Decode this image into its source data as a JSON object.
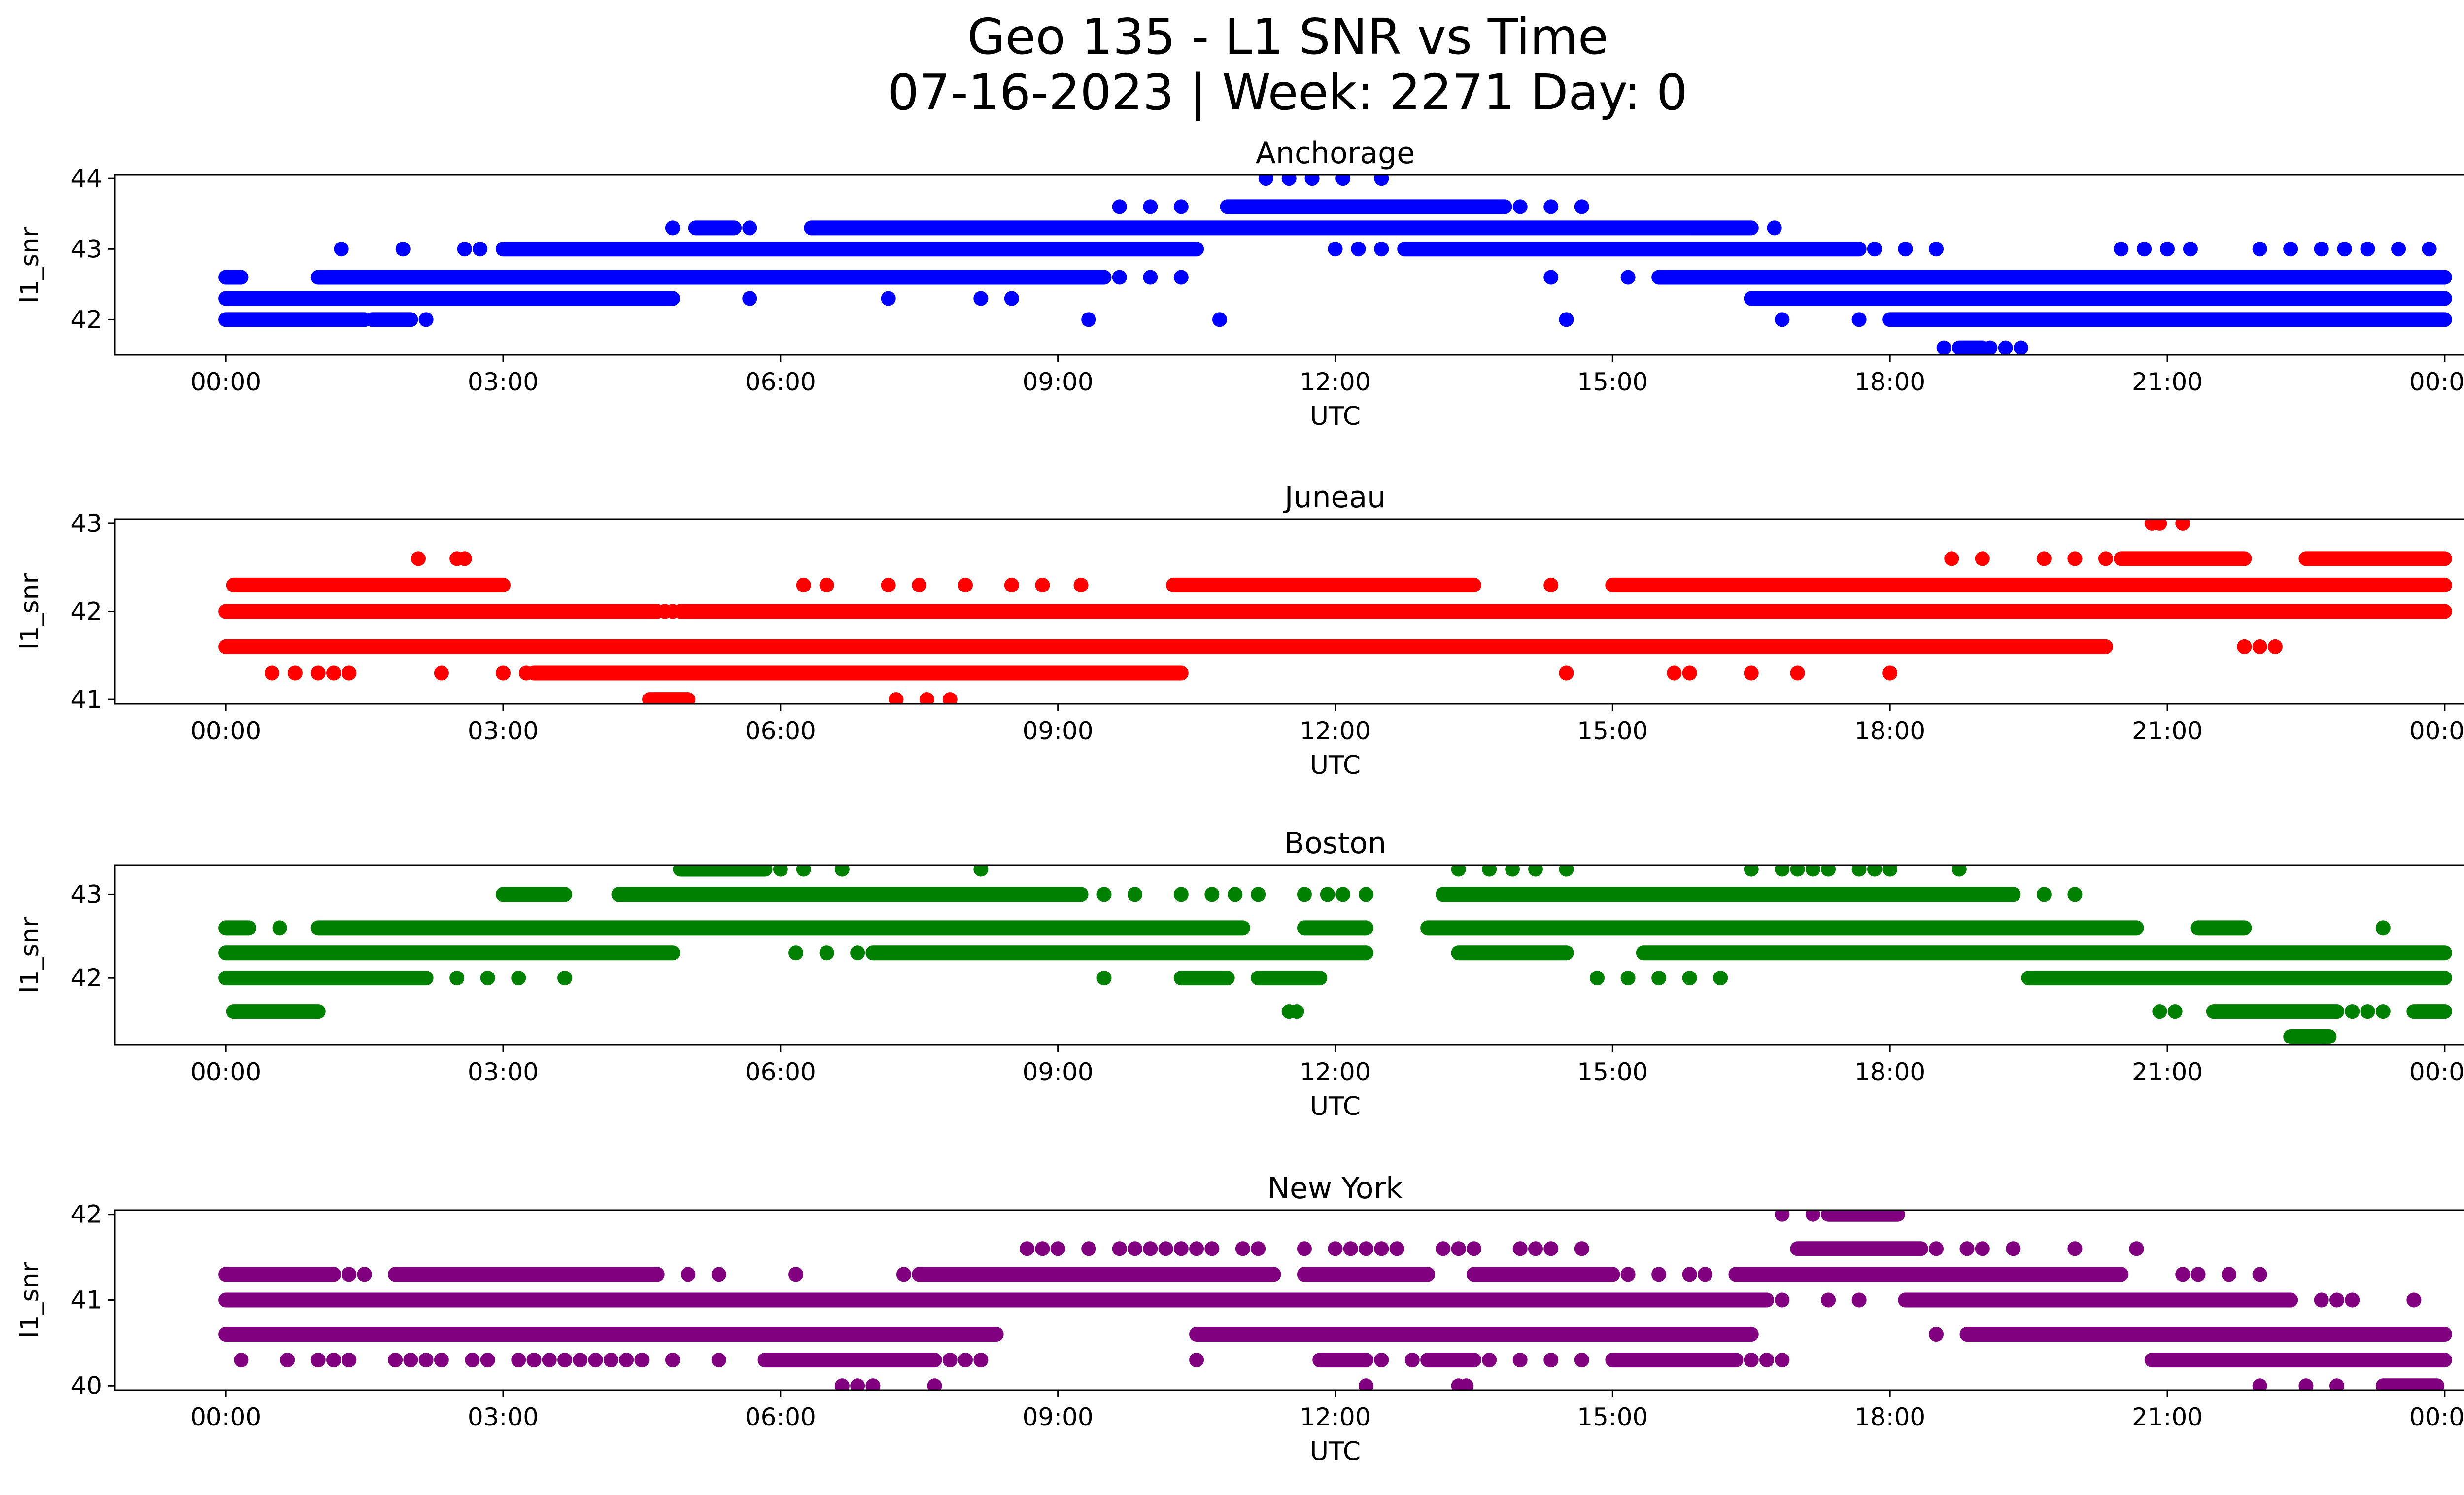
{
  "figure": {
    "title_line1": "Geo 135 - L1 SNR vs Time",
    "title_line2": "07-16-2023 | Week: 2271 Day: 0"
  },
  "colors": {
    "Anchorage": "#0000ff",
    "Juneau": "#ff0000",
    "Boston": "#008000",
    "New York": "#800080"
  },
  "chart_data": [
    {
      "type": "scatter",
      "title": "Anchorage",
      "xlabel": "UTC",
      "ylabel": "l1_snr",
      "xlim": [
        "00:00",
        "24:00"
      ],
      "xticks": [
        "00:00",
        "03:00",
        "06:00",
        "09:00",
        "12:00",
        "15:00",
        "18:00",
        "21:00",
        "00:00"
      ],
      "ylim": [
        41.5,
        44.05
      ],
      "yticks": [
        42,
        43,
        44
      ],
      "grid": false,
      "color": "#0000ff",
      "series": [
        {
          "y": 42.0,
          "bands": [
            [
              "00:00",
              "01:30"
            ],
            [
              "01:35",
              "02:00"
            ],
            [
              "18:00",
              "24:00"
            ]
          ],
          "points": [
            "02:10",
            "09:20",
            "10:45",
            "14:30",
            "16:50",
            "17:40"
          ]
        },
        {
          "y": 42.3,
          "bands": [
            [
              "00:00",
              "04:50"
            ],
            [
              "16:30",
              "24:00"
            ]
          ],
          "points": [
            "05:40",
            "07:10",
            "08:10",
            "08:30"
          ]
        },
        {
          "y": 42.6,
          "bands": [
            [
              "00:00",
              "00:10"
            ],
            [
              "01:00",
              "09:30"
            ],
            [
              "15:30",
              "24:00"
            ]
          ],
          "points": [
            "09:40",
            "10:00",
            "10:20",
            "14:20",
            "15:10"
          ]
        },
        {
          "y": 43.0,
          "bands": [
            [
              "03:00",
              "10:30"
            ],
            [
              "12:45",
              "17:40"
            ]
          ],
          "points": [
            "01:15",
            "01:55",
            "02:35",
            "02:45",
            "12:00",
            "12:15",
            "12:30",
            "17:50",
            "18:10",
            "18:30",
            "20:30",
            "20:45",
            "21:00",
            "21:15",
            "22:00",
            "22:20",
            "22:40",
            "22:55",
            "23:10",
            "23:30",
            "23:50"
          ]
        },
        {
          "y": 43.3,
          "bands": [
            [
              "05:05",
              "05:30"
            ],
            [
              "06:20",
              "16:30"
            ]
          ],
          "points": [
            "04:50",
            "05:40",
            "16:45"
          ]
        },
        {
          "y": 43.6,
          "bands": [
            [
              "10:50",
              "13:50"
            ]
          ],
          "points": [
            "09:40",
            "10:00",
            "10:20",
            "14:00",
            "14:20",
            "14:40"
          ]
        },
        {
          "y": 44.0,
          "bands": [],
          "points": [
            "11:15",
            "11:30",
            "11:45",
            "12:05",
            "12:30"
          ]
        },
        {
          "y": 41.6,
          "bands": [
            [
              "18:45",
              "19:00"
            ]
          ],
          "points": [
            "18:35",
            "19:05",
            "19:15",
            "19:25"
          ]
        }
      ]
    },
    {
      "type": "scatter",
      "title": "Juneau",
      "xlabel": "UTC",
      "ylabel": "l1_snr",
      "xlim": [
        "00:00",
        "24:00"
      ],
      "xticks": [
        "00:00",
        "03:00",
        "06:00",
        "09:00",
        "12:00",
        "15:00",
        "18:00",
        "21:00",
        "00:00"
      ],
      "ylim": [
        40.95,
        43.05
      ],
      "yticks": [
        41,
        42,
        43
      ],
      "grid": false,
      "color": "#ff0000",
      "series": [
        {
          "y": 41.0,
          "bands": [
            [
              "04:35",
              "05:00"
            ]
          ],
          "points": [
            "07:15",
            "07:35",
            "07:50"
          ]
        },
        {
          "y": 41.3,
          "bands": [
            [
              "03:20",
              "10:20"
            ]
          ],
          "points": [
            "00:30",
            "00:45",
            "01:00",
            "01:10",
            "01:20",
            "02:20",
            "03:00",
            "03:15",
            "14:30",
            "15:40",
            "15:50",
            "16:30",
            "17:00",
            "18:00"
          ]
        },
        {
          "y": 41.6,
          "bands": [
            [
              "00:00",
              "20:20"
            ]
          ],
          "points": [
            "21:50",
            "22:00",
            "22:10"
          ]
        },
        {
          "y": 42.0,
          "bands": [
            [
              "00:00",
              "04:40"
            ],
            [
              "04:55",
              "24:00"
            ]
          ],
          "points": [
            "04:45",
            "04:50"
          ]
        },
        {
          "y": 42.3,
          "bands": [
            [
              "00:05",
              "03:00"
            ],
            [
              "10:15",
              "13:30"
            ],
            [
              "15:00",
              "24:00"
            ]
          ],
          "points": [
            "06:15",
            "06:30",
            "07:10",
            "07:30",
            "08:00",
            "08:30",
            "08:50",
            "09:15",
            "14:20"
          ]
        },
        {
          "y": 42.6,
          "bands": [
            [
              "20:30",
              "21:50"
            ],
            [
              "22:30",
              "24:00"
            ]
          ],
          "points": [
            "02:05",
            "02:30",
            "02:35",
            "18:40",
            "19:00",
            "19:40",
            "20:00",
            "20:20"
          ]
        },
        {
          "y": 43.0,
          "bands": [],
          "points": [
            "20:50",
            "20:55",
            "21:10"
          ]
        }
      ]
    },
    {
      "type": "scatter",
      "title": "Boston",
      "xlabel": "UTC",
      "ylabel": "l1_snr",
      "xlim": [
        "00:00",
        "24:00"
      ],
      "xticks": [
        "00:00",
        "03:00",
        "06:00",
        "09:00",
        "12:00",
        "15:00",
        "18:00",
        "21:00",
        "00:00"
      ],
      "ylim": [
        41.2,
        43.35
      ],
      "yticks": [
        42,
        43
      ],
      "grid": false,
      "color": "#008000",
      "series": [
        {
          "y": 41.3,
          "bands": [
            [
              "22:20",
              "22:45"
            ]
          ],
          "points": []
        },
        {
          "y": 41.6,
          "bands": [
            [
              "00:05",
              "01:00"
            ],
            [
              "21:30",
              "22:50"
            ],
            [
              "23:40",
              "24:00"
            ]
          ],
          "points": [
            "11:30",
            "11:35",
            "20:55",
            "21:05",
            "23:00",
            "23:10",
            "23:20"
          ]
        },
        {
          "y": 42.0,
          "bands": [
            [
              "00:00",
              "02:10"
            ],
            [
              "10:20",
              "10:50"
            ],
            [
              "11:10",
              "11:50"
            ],
            [
              "19:30",
              "24:00"
            ]
          ],
          "points": [
            "02:30",
            "02:50",
            "03:10",
            "03:40",
            "09:30",
            "14:50",
            "15:10",
            "15:30",
            "15:50",
            "16:10"
          ]
        },
        {
          "y": 42.3,
          "bands": [
            [
              "00:00",
              "04:50"
            ],
            [
              "07:00",
              "12:20"
            ],
            [
              "13:20",
              "14:30"
            ],
            [
              "15:20",
              "24:00"
            ]
          ],
          "points": [
            "06:10",
            "06:30",
            "06:50"
          ]
        },
        {
          "y": 42.6,
          "bands": [
            [
              "00:00",
              "00:15"
            ],
            [
              "01:00",
              "11:00"
            ],
            [
              "11:40",
              "12:20"
            ],
            [
              "13:00",
              "20:40"
            ],
            [
              "21:20",
              "21:50"
            ]
          ],
          "points": [
            "00:35",
            "23:20"
          ]
        },
        {
          "y": 43.0,
          "bands": [
            [
              "03:00",
              "03:40"
            ],
            [
              "04:15",
              "09:15"
            ],
            [
              "13:10",
              "19:20"
            ]
          ],
          "points": [
            "09:30",
            "09:50",
            "10:20",
            "10:40",
            "10:55",
            "11:10",
            "11:40",
            "11:55",
            "12:05",
            "12:20",
            "19:40",
            "20:00"
          ]
        },
        {
          "y": 43.3,
          "bands": [
            [
              "04:55",
              "05:50"
            ]
          ],
          "points": [
            "06:00",
            "06:15",
            "06:40",
            "08:10",
            "13:20",
            "13:40",
            "13:55",
            "14:10",
            "14:30",
            "16:30",
            "16:50",
            "17:00",
            "17:10",
            "17:20",
            "17:40",
            "17:50",
            "18:00",
            "18:45"
          ]
        }
      ]
    },
    {
      "type": "scatter",
      "title": "New York",
      "xlabel": "UTC",
      "ylabel": "l1_snr",
      "xlim": [
        "00:00",
        "24:00"
      ],
      "xticks": [
        "00:00",
        "03:00",
        "06:00",
        "09:00",
        "12:00",
        "15:00",
        "18:00",
        "21:00",
        "00:00"
      ],
      "ylim": [
        39.95,
        42.05
      ],
      "yticks": [
        40,
        41,
        42
      ],
      "grid": false,
      "color": "#800080",
      "series": [
        {
          "y": 40.0,
          "bands": [
            [
              "23:20",
              "23:55"
            ]
          ],
          "points": [
            "06:40",
            "06:50",
            "07:00",
            "07:40",
            "12:20",
            "13:20",
            "13:25",
            "22:00",
            "22:30",
            "22:50"
          ]
        },
        {
          "y": 40.3,
          "bands": [
            [
              "05:50",
              "07:40"
            ],
            [
              "11:50",
              "12:20"
            ],
            [
              "13:00",
              "13:30"
            ],
            [
              "15:00",
              "16:20"
            ],
            [
              "20:50",
              "24:00"
            ]
          ],
          "points": [
            "00:10",
            "00:40",
            "01:00",
            "01:10",
            "01:20",
            "01:50",
            "02:00",
            "02:10",
            "02:20",
            "02:40",
            "02:50",
            "03:10",
            "03:20",
            "03:30",
            "03:40",
            "03:50",
            "04:00",
            "04:10",
            "04:20",
            "04:30",
            "04:50",
            "05:20",
            "07:50",
            "08:00",
            "08:10",
            "10:30",
            "12:30",
            "12:50",
            "13:40",
            "14:00",
            "14:20",
            "14:40",
            "16:30",
            "16:40",
            "16:50"
          ]
        },
        {
          "y": 40.6,
          "bands": [
            [
              "00:00",
              "08:20"
            ],
            [
              "10:30",
              "16:30"
            ],
            [
              "18:50",
              "24:00"
            ]
          ],
          "points": [
            "18:30"
          ]
        },
        {
          "y": 41.0,
          "bands": [
            [
              "00:00",
              "16:40"
            ],
            [
              "18:10",
              "22:20"
            ]
          ],
          "points": [
            "16:50",
            "17:20",
            "17:40",
            "22:40",
            "22:50",
            "23:00",
            "23:40"
          ]
        },
        {
          "y": 41.3,
          "bands": [
            [
              "00:00",
              "01:10"
            ],
            [
              "01:50",
              "04:40"
            ],
            [
              "07:30",
              "11:20"
            ],
            [
              "11:40",
              "13:00"
            ],
            [
              "13:30",
              "15:00"
            ],
            [
              "16:20",
              "20:30"
            ]
          ],
          "points": [
            "01:20",
            "01:30",
            "05:00",
            "05:20",
            "06:10",
            "07:20",
            "15:10",
            "15:30",
            "15:50",
            "16:00",
            "21:10",
            "21:20",
            "21:40",
            "22:00"
          ]
        },
        {
          "y": 41.6,
          "bands": [
            [
              "17:00",
              "18:20"
            ]
          ],
          "points": [
            "08:40",
            "08:50",
            "09:00",
            "09:20",
            "09:40",
            "09:50",
            "10:00",
            "10:10",
            "10:20",
            "10:30",
            "10:40",
            "11:00",
            "11:10",
            "11:40",
            "12:00",
            "12:10",
            "12:20",
            "12:30",
            "12:40",
            "13:10",
            "13:20",
            "13:30",
            "14:00",
            "14:10",
            "14:20",
            "14:40",
            "18:30",
            "18:50",
            "19:00",
            "19:20",
            "20:00",
            "20:40"
          ]
        },
        {
          "y": 42.0,
          "bands": [
            [
              "17:20",
              "18:05"
            ]
          ],
          "points": [
            "16:50",
            "17:10"
          ]
        }
      ]
    }
  ]
}
